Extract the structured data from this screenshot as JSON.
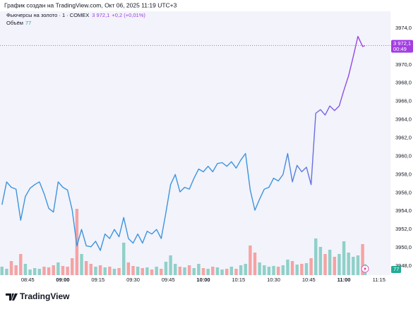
{
  "chart_data": {
    "type": "line",
    "title": "График создан на TradingView.com, Окт 06, 2025 11:19 UTC+3",
    "change": "+0,2 (+0,01%)",
    "price_label": {
      "value": 3972.1,
      "label": "3 972,1",
      "countdown": "00:49"
    },
    "brand": "TradingView",
    "x": [
      "08:34",
      "08:36",
      "08:38",
      "08:40",
      "08:42",
      "08:44",
      "08:46",
      "08:48",
      "08:50",
      "08:52",
      "08:54",
      "08:56",
      "08:58",
      "09:00",
      "09:02",
      "09:04",
      "09:06",
      "09:08",
      "09:10",
      "09:12",
      "09:14",
      "09:16",
      "09:18",
      "09:20",
      "09:22",
      "09:24",
      "09:26",
      "09:28",
      "09:30",
      "09:32",
      "09:34",
      "09:36",
      "09:38",
      "09:40",
      "09:42",
      "09:44",
      "09:46",
      "09:48",
      "09:50",
      "09:52",
      "09:54",
      "09:56",
      "09:58",
      "10:00",
      "10:02",
      "10:04",
      "10:06",
      "10:08",
      "10:10",
      "10:12",
      "10:14",
      "10:16",
      "10:18",
      "10:20",
      "10:22",
      "10:24",
      "10:26",
      "10:28",
      "10:30",
      "10:32",
      "10:34",
      "10:36",
      "10:38",
      "10:40",
      "10:42",
      "10:44",
      "10:46",
      "10:48",
      "10:50",
      "10:52",
      "10:54",
      "10:56",
      "10:58",
      "11:00",
      "11:02",
      "11:04",
      "11:06",
      "11:08",
      "11:09"
    ],
    "series": [
      {
        "name": "Фьючерсы на золото · 1 · COMEX",
        "color": [
          "#3d94dc",
          "#a23ee2"
        ],
        "values": [
          3954.7,
          3957.2,
          3956.6,
          3956.4,
          3953.0,
          3955.6,
          3956.5,
          3956.9,
          3957.2,
          3955.9,
          3954.3,
          3953.9,
          3957.2,
          3956.6,
          3956.3,
          3954.1,
          3950.2,
          3952.0,
          3950.2,
          3950.1,
          3950.7,
          3949.7,
          3951.5,
          3951.0,
          3952.0,
          3951.2,
          3953.3,
          3951.0,
          3950.5,
          3951.5,
          3950.5,
          3951.8,
          3951.5,
          3952.0,
          3951.0,
          3953.8,
          3956.9,
          3958.0,
          3956.1,
          3956.6,
          3956.4,
          3957.6,
          3958.6,
          3958.3,
          3958.9,
          3958.3,
          3959.2,
          3959.3,
          3958.9,
          3959.4,
          3958.7,
          3959.6,
          3960.3,
          3956.3,
          3954.1,
          3955.3,
          3956.4,
          3956.6,
          3957.6,
          3957.3,
          3958.0,
          3960.3,
          3957.2,
          3959.0,
          3958.3,
          3958.8,
          3956.9,
          3964.7,
          3965.1,
          3964.5,
          3965.5,
          3965.0,
          3965.5,
          3967.2,
          3968.8,
          3970.9,
          3973.1,
          3972.0,
          3972.1
        ]
      },
      {
        "name": "Объём",
        "axis": "y2",
        "color": [
          "#8fd0c8",
          "#f5a3a3"
        ],
        "values": [
          60,
          45,
          100,
          70,
          150,
          80,
          40,
          50,
          45,
          60,
          55,
          70,
          90,
          65,
          60,
          120,
          470,
          150,
          100,
          80,
          60,
          70,
          55,
          60,
          45,
          50,
          230,
          90,
          65,
          60,
          50,
          55,
          40,
          60,
          45,
          95,
          140,
          80,
          60,
          55,
          70,
          50,
          80,
          50,
          45,
          60,
          55,
          40,
          45,
          60,
          45,
          70,
          80,
          210,
          160,
          90,
          70,
          60,
          65,
          60,
          70,
          110,
          100,
          75,
          80,
          85,
          120,
          260,
          200,
          150,
          180,
          130,
          150,
          240,
          160,
          130,
          140,
          220,
          77
        ]
      }
    ],
    "xticks": [
      "08:45",
      "09:00",
      "09:15",
      "09:30",
      "09:45",
      "10:00",
      "10:15",
      "10:30",
      "10:45",
      "11:00",
      "11:15"
    ],
    "ylim": [
      3947,
      3975.85
    ],
    "yticks": [
      {
        "value": 3948,
        "label": "3948,0"
      },
      {
        "value": 3950,
        "label": "3950,0"
      },
      {
        "value": 3952,
        "label": "3952,0"
      },
      {
        "value": 3954,
        "label": "3954,0"
      },
      {
        "value": 3956,
        "label": "3956,0"
      },
      {
        "value": 3958,
        "label": "3958,0"
      },
      {
        "value": 3960,
        "label": "3960,0"
      },
      {
        "value": 3962,
        "label": "3962,0"
      },
      {
        "value": 3964,
        "label": "3964,0"
      },
      {
        "value": 3966,
        "label": "3966,0"
      },
      {
        "value": 3968,
        "label": "3968,0"
      },
      {
        "value": 3970,
        "label": "3970,0"
      },
      {
        "value": 3972,
        "label": "3972,0"
      },
      {
        "value": 3974,
        "label": "3974,0"
      }
    ],
    "y2lim": [
      0,
      1870
    ],
    "grid": false
  }
}
